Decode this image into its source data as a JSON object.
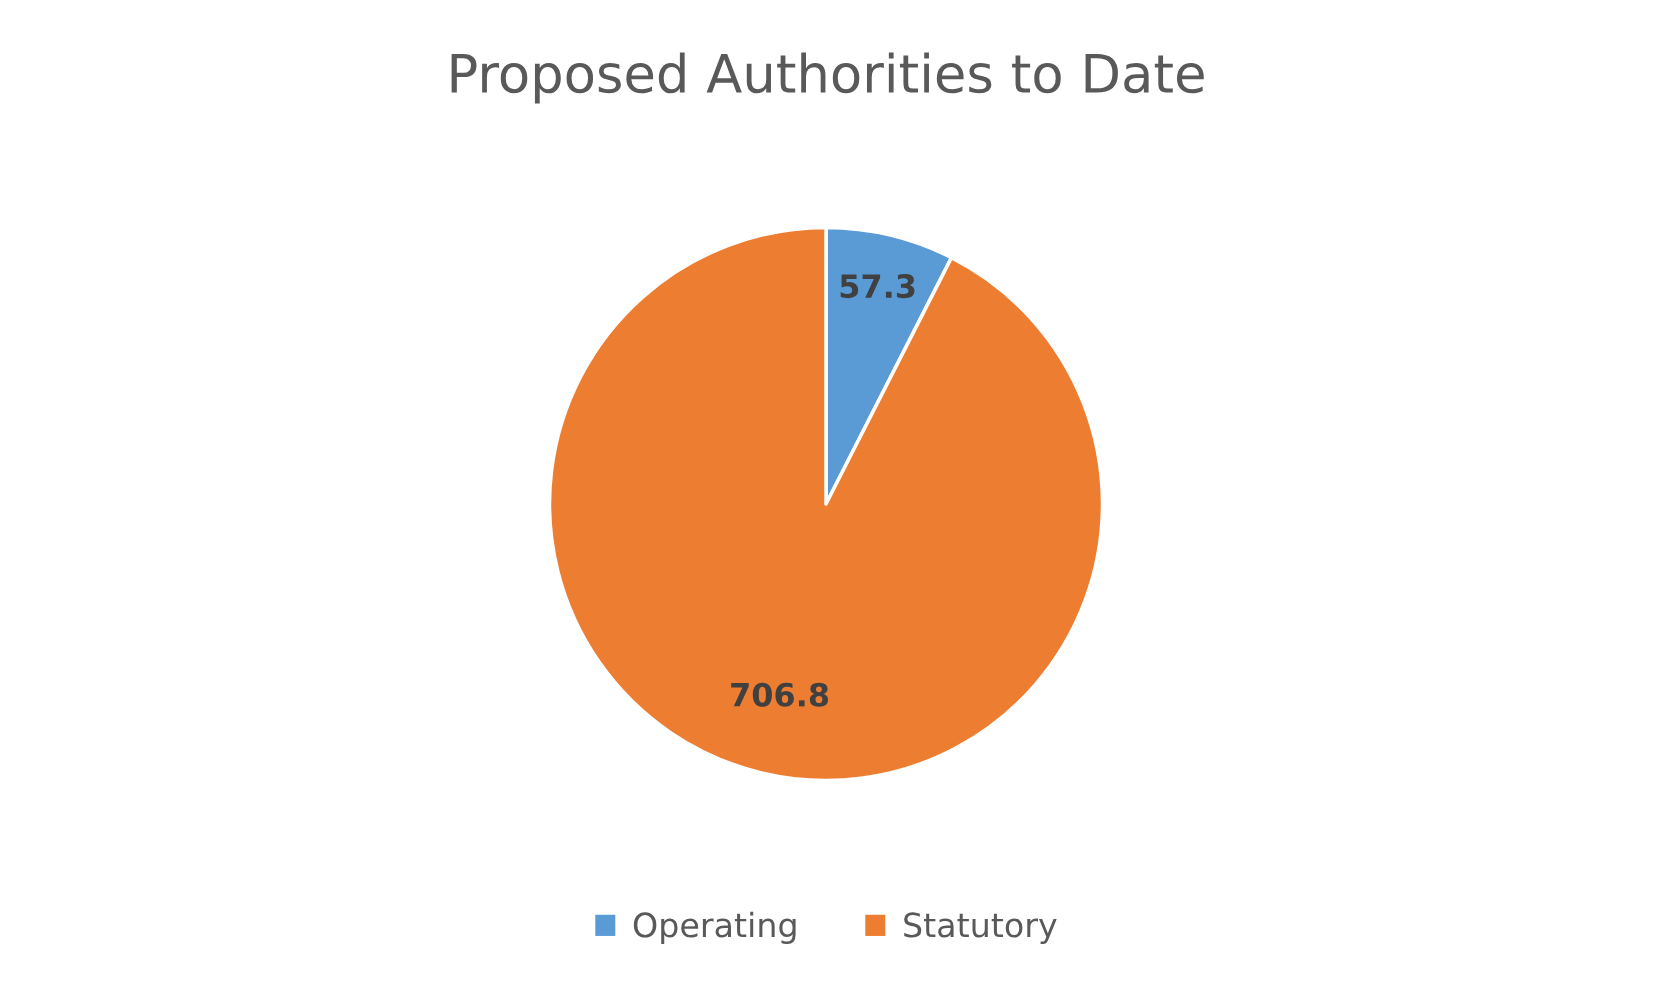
{
  "chart_data": {
    "type": "pie",
    "title": "Proposed Authorities to Date",
    "categories": [
      "Operating",
      "Statutory"
    ],
    "values": [
      57.3,
      706.8
    ],
    "colors": [
      "#5b9bd5",
      "#ed7d31"
    ],
    "data_labels": true,
    "legend": "bottom"
  }
}
